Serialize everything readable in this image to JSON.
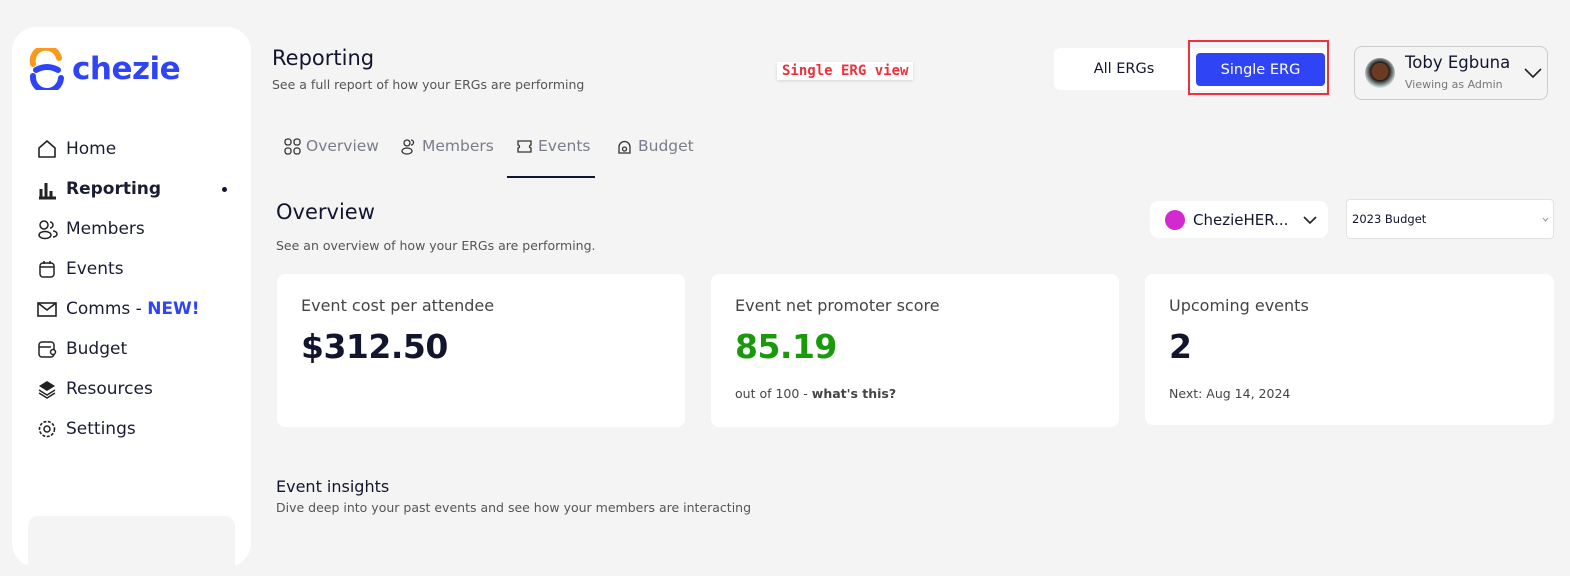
{
  "brand": {
    "name": "chezie",
    "accent": "#2f45f5"
  },
  "sidebar": {
    "items": [
      {
        "label": "Home",
        "icon": "home-icon"
      },
      {
        "label": "Reporting",
        "icon": "bar-chart-icon",
        "active": true
      },
      {
        "label": "Members",
        "icon": "members-icon"
      },
      {
        "label": "Events",
        "icon": "calendar-icon"
      },
      {
        "label": "Comms - ",
        "badge": "NEW!",
        "icon": "mail-icon"
      },
      {
        "label": "Budget",
        "icon": "wallet-icon"
      },
      {
        "label": "Resources",
        "icon": "layers-icon"
      },
      {
        "label": "Settings",
        "icon": "gear-icon"
      }
    ]
  },
  "header": {
    "title": "Reporting",
    "subtitle": "See a full report of how your ERGs are performing",
    "annotation": "Single ERG view"
  },
  "view_toggle": {
    "all": "All ERGs",
    "single": "Single ERG",
    "selected": "Single ERG"
  },
  "user": {
    "name": "Toby Egbuna",
    "role": "Viewing as Admin"
  },
  "tabs": [
    {
      "label": "Overview"
    },
    {
      "label": "Members"
    },
    {
      "label": "Events",
      "active": true
    },
    {
      "label": "Budget"
    }
  ],
  "overview": {
    "title": "Overview",
    "subtitle": "See an overview of how your ERGs are performing.",
    "erg_select": "ChezieHER...",
    "budget_select": "2023 Budget"
  },
  "cards": [
    {
      "title": "Event cost per attendee",
      "value": "$312.50"
    },
    {
      "title": "Event net promoter score",
      "value": "85.19",
      "value_color": "#1a9a0a",
      "sub": "out of 100 - ",
      "link": "what's this?"
    },
    {
      "title": "Upcoming events",
      "value": "2",
      "sub": "Next: Aug 14, 2024"
    }
  ],
  "insights": {
    "title": "Event insights",
    "subtitle": "Dive deep into your past events and see how your members are interacting"
  }
}
